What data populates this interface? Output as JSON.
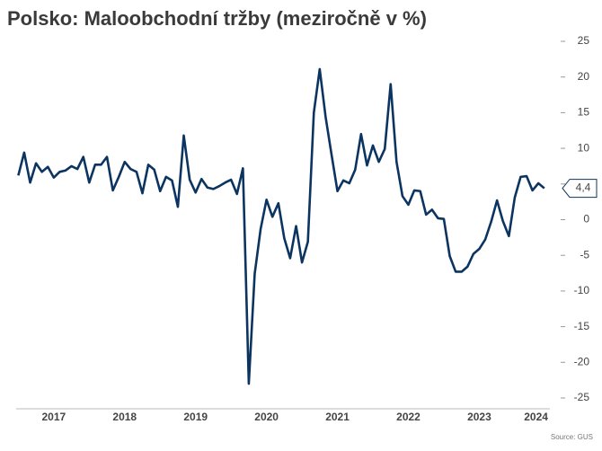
{
  "chart_data": {
    "type": "line",
    "title": "Polsko: Maloobchodní tržby (meziročně v %)",
    "source": "Source: GUS",
    "x": [
      2017,
      2017.083,
      2017.167,
      2017.25,
      2017.333,
      2017.417,
      2017.5,
      2017.583,
      2017.667,
      2017.75,
      2017.833,
      2017.917,
      2018,
      2018.083,
      2018.167,
      2018.25,
      2018.333,
      2018.417,
      2018.5,
      2018.583,
      2018.667,
      2018.75,
      2018.833,
      2018.917,
      2019,
      2019.083,
      2019.167,
      2019.25,
      2019.333,
      2019.417,
      2019.5,
      2019.583,
      2019.667,
      2019.75,
      2019.833,
      2019.917,
      2020,
      2020.083,
      2020.167,
      2020.25,
      2020.333,
      2020.417,
      2020.5,
      2020.583,
      2020.667,
      2020.75,
      2020.833,
      2020.917,
      2021,
      2021.083,
      2021.167,
      2021.25,
      2021.333,
      2021.417,
      2021.5,
      2021.583,
      2021.667,
      2021.75,
      2021.833,
      2021.917,
      2022,
      2022.083,
      2022.167,
      2022.25,
      2022.333,
      2022.417,
      2022.5,
      2022.583,
      2022.667,
      2022.75,
      2022.833,
      2022.917,
      2023,
      2023.083,
      2023.167,
      2023.25,
      2023.333,
      2023.417,
      2023.5,
      2023.583,
      2023.667,
      2023.75,
      2023.833,
      2023.917,
      2024,
      2024.083,
      2024.167,
      2024.25,
      2024.333,
      2024.417
    ],
    "series": [
      {
        "color": "#0c3461",
        "values": [
          6.2,
          9.4,
          5.2,
          7.9,
          6.7,
          7.4,
          5.9,
          6.7,
          6.9,
          7.5,
          7.1,
          8.8,
          5.2,
          7.7,
          7.7,
          8.8,
          4.1,
          6.0,
          8.1,
          7.1,
          6.7,
          3.7,
          7.7,
          7.0,
          4.0,
          6.0,
          5.5,
          1.8,
          11.8,
          5.6,
          3.8,
          5.7,
          4.5,
          4.3,
          4.7,
          5.2,
          5.6,
          3.6,
          7.2,
          -23.0,
          -7.6,
          -1.3,
          2.8,
          0.4,
          2.3,
          -2.6,
          -5.4,
          -0.9,
          -6.0,
          -3.1,
          15.0,
          21.1,
          14.4,
          9.1,
          4.0,
          5.5,
          5.1,
          7.0,
          12.0,
          7.6,
          10.4,
          8.1,
          9.9,
          19.0,
          8.1,
          3.3,
          2.1,
          4.1,
          4.0,
          0.7,
          1.4,
          0.2,
          0.1,
          -5.1,
          -7.3,
          -7.3,
          -6.6,
          -4.8,
          -4.1,
          -2.8,
          -0.3,
          2.7,
          -0.2,
          -2.3,
          3.1,
          6.0,
          6.1,
          4.1,
          5.1,
          4.4
        ],
        "value_labels": [
          null,
          null,
          null,
          null,
          null,
          null,
          null,
          null,
          null,
          null,
          null,
          null,
          null,
          null,
          null,
          null,
          null,
          null,
          null,
          null,
          null,
          null,
          null,
          null,
          null,
          null,
          null,
          null,
          null,
          null,
          null,
          null,
          null,
          null,
          null,
          null,
          null,
          null,
          null,
          null,
          null,
          null,
          null,
          null,
          null,
          null,
          null,
          null,
          null,
          null,
          null,
          null,
          null,
          null,
          null,
          null,
          null,
          null,
          null,
          null,
          null,
          null,
          null,
          null,
          null,
          null,
          null,
          null,
          null,
          null,
          null,
          null,
          null,
          null,
          null,
          null,
          null,
          null,
          null,
          null,
          null,
          null,
          null,
          null,
          null,
          null,
          null,
          null,
          null,
          "4,4"
        ]
      }
    ],
    "xlim": [
      2016.97,
      2024.47
    ],
    "xticks": [
      {
        "value": 2017.5,
        "label": "2017"
      },
      {
        "value": 2018.5,
        "label": "2018"
      },
      {
        "value": 2019.5,
        "label": "2019"
      },
      {
        "value": 2020.5,
        "label": "2020"
      },
      {
        "value": 2021.5,
        "label": "2021"
      },
      {
        "value": 2022.5,
        "label": "2022"
      },
      {
        "value": 2023.5,
        "label": "2023"
      },
      {
        "value": 2024.3,
        "label": "2024"
      }
    ],
    "ylim": [
      -25,
      25
    ],
    "yticks": [
      25,
      20,
      15,
      10,
      5,
      0,
      -5,
      -10,
      -15,
      -20,
      -25
    ],
    "y_axis_side": "right",
    "grid": false
  }
}
